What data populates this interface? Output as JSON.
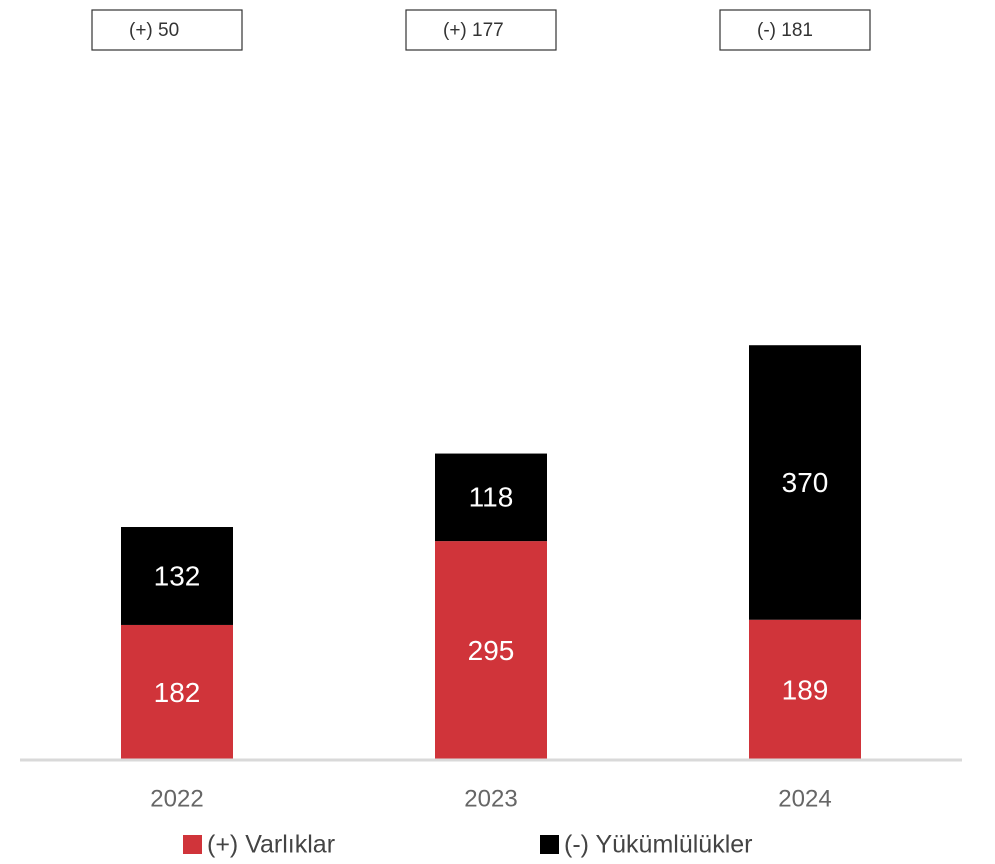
{
  "chart_data": {
    "type": "stacked_bar",
    "categories": [
      "2022",
      "2023",
      "2024"
    ],
    "series": [
      {
        "name": "(+) Varlıklar",
        "color": "#d0343a",
        "values": [
          182,
          295,
          189
        ]
      },
      {
        "name": "(-) Yükümlülükler",
        "color": "#000000",
        "values": [
          132,
          118,
          370
        ]
      }
    ],
    "annotations": [
      "(+) 50",
      "(+) 177",
      "(-) 181"
    ],
    "ylim": [
      0,
      1000
    ]
  }
}
